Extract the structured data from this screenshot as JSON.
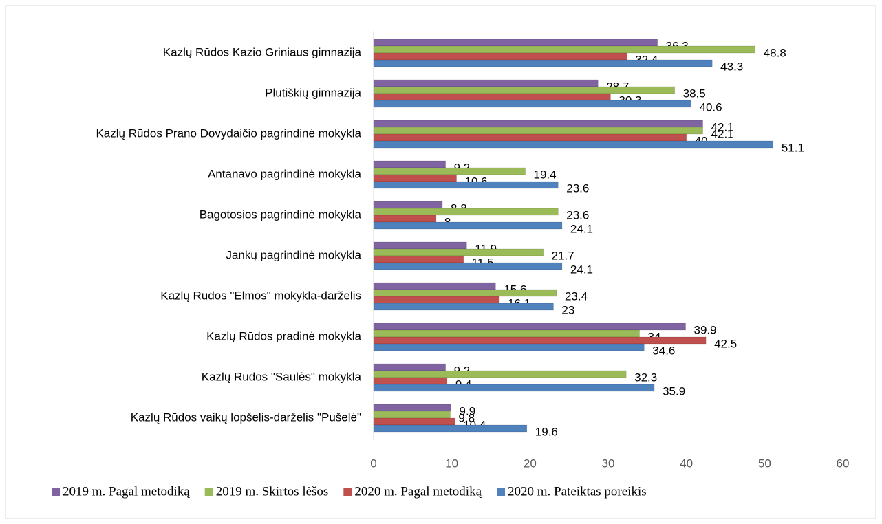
{
  "chart_data": {
    "type": "hbar",
    "categories": [
      "Kazlų Rūdos Kazio Griniaus gimnazija",
      "Plutiškių gimnazija",
      "Kazlų Rūdos Prano Dovydaičio pagrindinė mokykla",
      "Antanavo pagrindinė mokykla",
      "Bagotosios pagrindinė mokykla",
      "Jankų pagrindinė mokykla",
      "Kazlų Rūdos \"Elmos\" mokykla-darželis",
      "Kazlų Rūdos pradinė mokykla",
      "Kazlų Rūdos \"Saulės\" mokykla",
      "Kazlų Rūdos vaikų lopšelis-darželis \"Pušelė\""
    ],
    "series": [
      {
        "name": "2019 m. Pagal metodiką",
        "color": "#8064a2",
        "values": [
          36.3,
          28.7,
          42.1,
          9.2,
          8.8,
          11.9,
          15.6,
          39.9,
          9.2,
          9.9
        ]
      },
      {
        "name": "2019 m. Skirtos lėšos",
        "color": "#9bbb59",
        "values": [
          48.8,
          38.5,
          42.1,
          19.4,
          23.6,
          21.7,
          23.4,
          34,
          32.3,
          9.8
        ]
      },
      {
        "name": "2020 m. Pagal metodiką",
        "color": "#c0504d",
        "values": [
          32.4,
          30.3,
          40,
          10.6,
          8,
          11.5,
          16.1,
          42.5,
          9.4,
          10.4
        ]
      },
      {
        "name": "2020 m. Pateiktas poreikis",
        "color": "#4f81bd",
        "values": [
          43.3,
          40.6,
          51.1,
          23.6,
          24.1,
          24.1,
          23,
          34.6,
          35.9,
          19.6
        ]
      }
    ],
    "xlim": [
      0,
      60
    ],
    "xticks": [
      0,
      10,
      20,
      30,
      40,
      50,
      60
    ],
    "grid": false,
    "legend": "bottom"
  }
}
